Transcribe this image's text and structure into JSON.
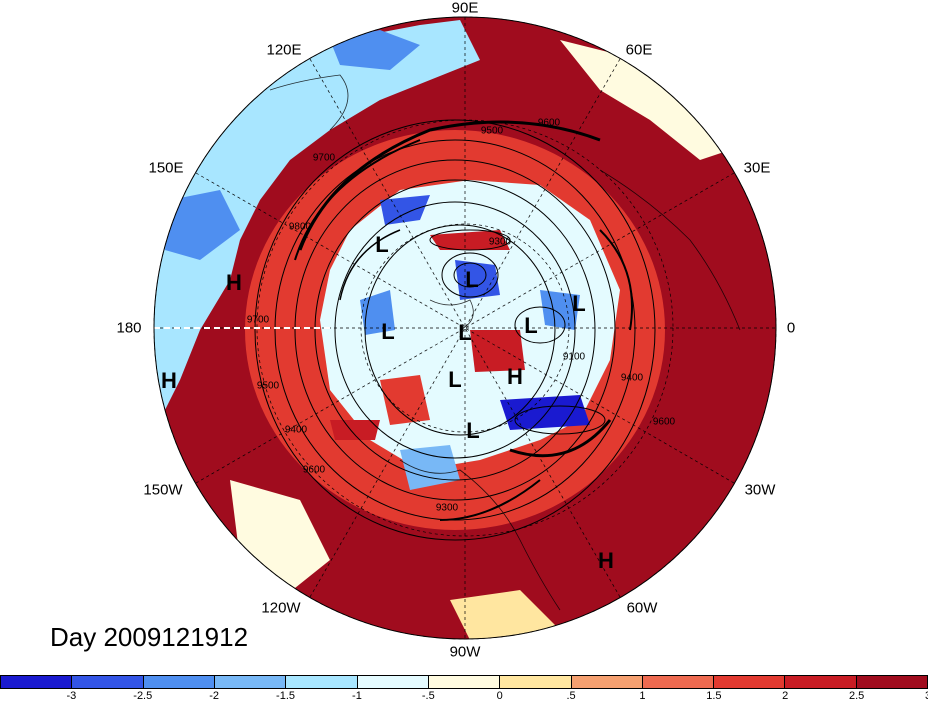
{
  "longitude_labels": [
    {
      "id": "90e",
      "text": "90E"
    },
    {
      "id": "60e",
      "text": "60E"
    },
    {
      "id": "120e",
      "text": "120E"
    },
    {
      "id": "150e",
      "text": "150E"
    },
    {
      "id": "30e",
      "text": "30E"
    },
    {
      "id": "180",
      "text": "180"
    },
    {
      "id": "0",
      "text": "0"
    },
    {
      "id": "150w",
      "text": "150W"
    },
    {
      "id": "30w",
      "text": "30W"
    },
    {
      "id": "120w",
      "text": "120W"
    },
    {
      "id": "60w",
      "text": "60W"
    },
    {
      "id": "90w",
      "text": "90W"
    }
  ],
  "pressure_centers": [
    {
      "type": "H",
      "text": "H"
    },
    {
      "type": "H",
      "text": "H"
    },
    {
      "type": "L",
      "text": "L"
    },
    {
      "type": "L",
      "text": "L"
    },
    {
      "type": "L",
      "text": "L"
    },
    {
      "type": "L",
      "text": "L"
    },
    {
      "type": "L",
      "text": "L"
    },
    {
      "type": "L",
      "text": "L"
    },
    {
      "type": "L",
      "text": "L"
    },
    {
      "type": "L",
      "text": "L"
    },
    {
      "type": "H",
      "text": "H"
    },
    {
      "type": "H",
      "text": "H"
    }
  ],
  "contour_labels": [
    "9700",
    "9500",
    "9600",
    "9800",
    "9300",
    "9100",
    "9400",
    "9600",
    "9700",
    "9500",
    "9400",
    "9600",
    "9300"
  ],
  "day_label": "Day 2009121912",
  "colorbar": {
    "colors": [
      "#1a1ad0",
      "#3355e6",
      "#4f8ff0",
      "#78b8f6",
      "#a8e6ff",
      "#e4fbff",
      "#fffbe0",
      "#ffe6a0",
      "#f5a070",
      "#ee6a50",
      "#e23a30",
      "#c81c24",
      "#a00c1e"
    ],
    "ticks": [
      "-3",
      "-2.5",
      "-2",
      "-1.5",
      "-1",
      "-.5",
      "0",
      ".5",
      "1",
      "1.5",
      "2",
      "2.5",
      "3"
    ]
  }
}
